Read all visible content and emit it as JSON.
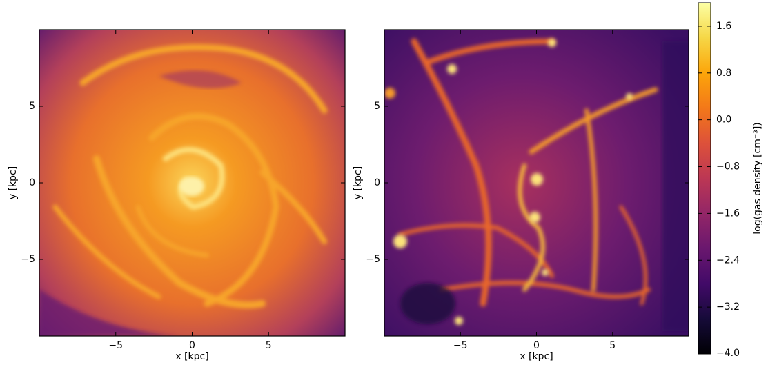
{
  "chart_data": [
    {
      "type": "image",
      "xlabel": "x [kpc]",
      "ylabel": "y [kpc]",
      "xlim": [
        -10,
        10
      ],
      "ylim": [
        -10,
        10
      ],
      "xticks": [
        {
          "value": -5,
          "label": "−5"
        },
        0,
        5
      ],
      "yticks": [
        {
          "value": -5,
          "label": "−5"
        },
        0,
        5
      ]
    },
    {
      "type": "image",
      "xlabel": "x [kpc]",
      "ylabel": "y [kpc]",
      "xlim": [
        -10,
        10
      ],
      "ylim": [
        -10,
        10
      ],
      "xticks": [
        {
          "value": -5,
          "label": "−5"
        },
        0,
        5
      ],
      "yticks": [
        {
          "value": -5,
          "label": "−5"
        },
        0,
        5
      ],
      "colorbar": {
        "label": "log(gas density [cm⁻³])",
        "colormap": "inferno",
        "lim": [
          -4,
          2
        ],
        "ticks": [
          {
            "value": -4,
            "label": "−4.0"
          },
          {
            "value": -3.2,
            "label": "−3.2"
          },
          {
            "value": -2.4,
            "label": "−2.4"
          },
          {
            "value": -1.6,
            "label": "−1.6"
          },
          {
            "value": -0.8,
            "label": "−0.8"
          },
          {
            "value": 0,
            "label": "0.0"
          },
          {
            "value": 0.8,
            "label": "0.8"
          },
          {
            "value": 1.6,
            "label": "1.6"
          }
        ]
      }
    }
  ]
}
